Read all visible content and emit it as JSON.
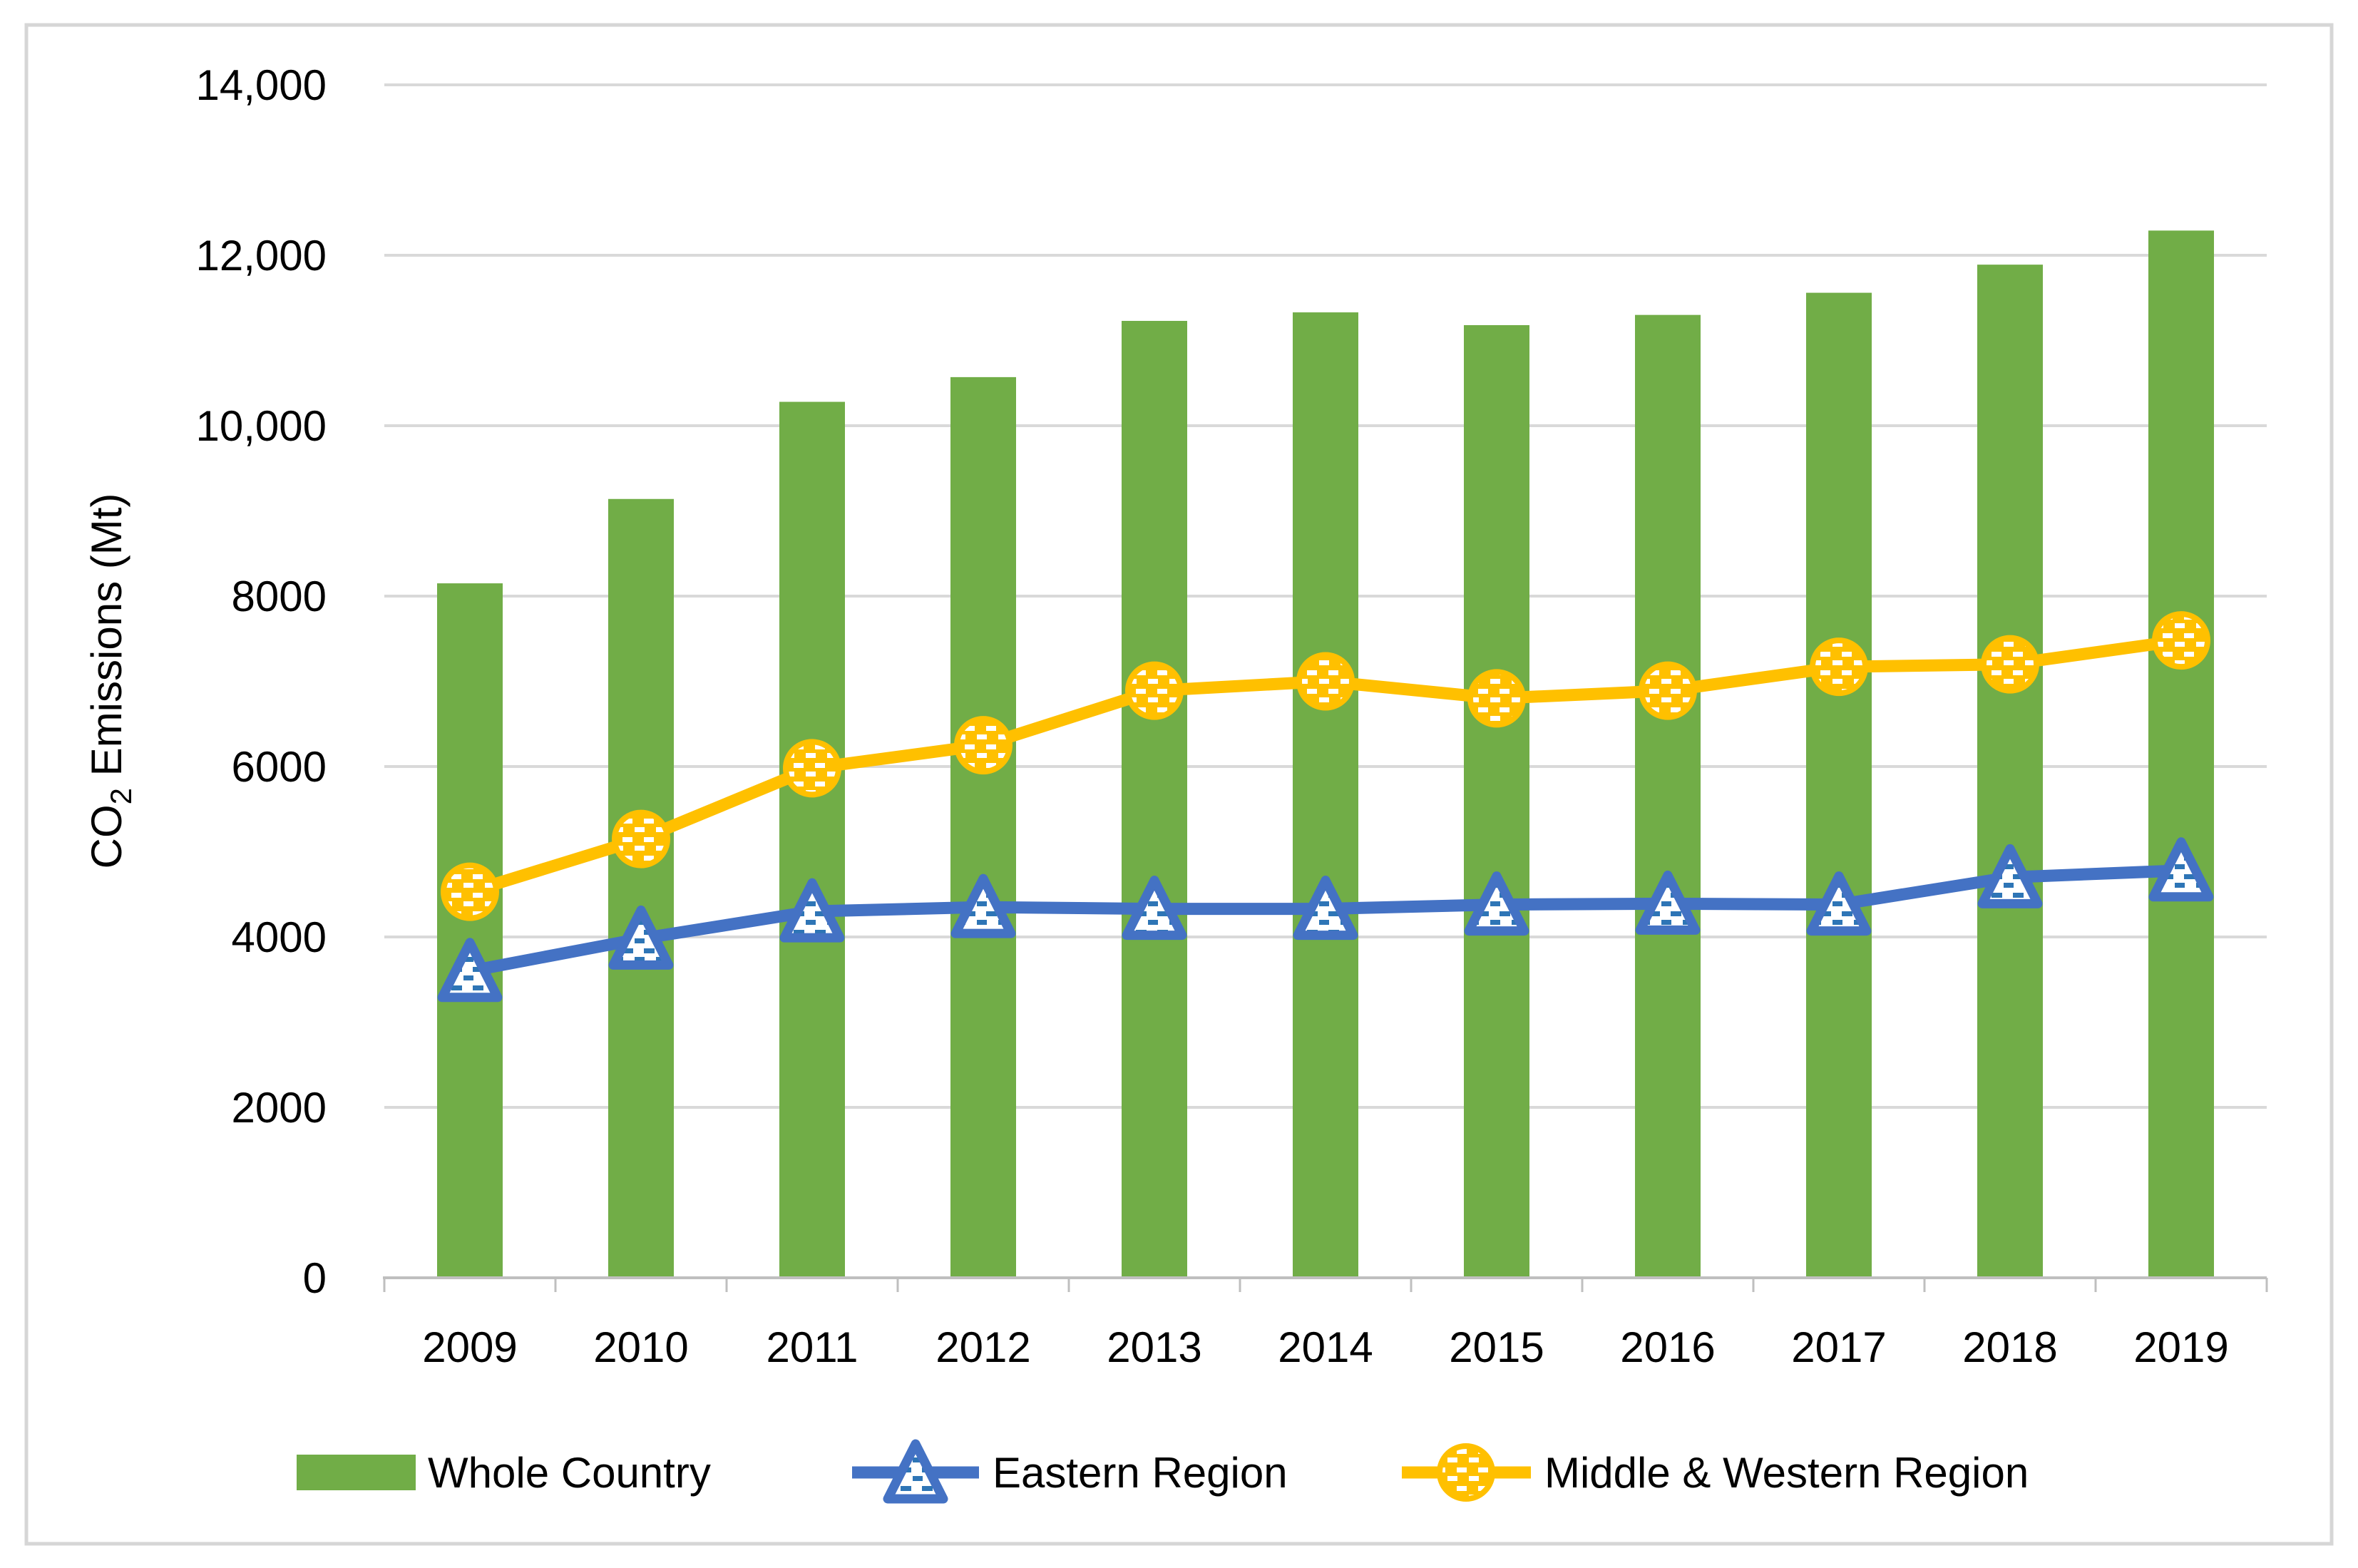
{
  "chart_data": {
    "type": "bar+line",
    "title": "",
    "categories": [
      "2009",
      "2010",
      "2011",
      "2012",
      "2013",
      "2014",
      "2015",
      "2016",
      "2017",
      "2018",
      "2019"
    ],
    "series": [
      {
        "name": "Whole Country",
        "type": "bar",
        "color": "#71AD47",
        "values": [
          8150,
          9140,
          10280,
          10570,
          11230,
          11330,
          11180,
          11300,
          11560,
          11890,
          12290
        ]
      },
      {
        "name": "Eastern Region",
        "type": "line",
        "color": "#4472C4",
        "marker": "triangle",
        "marker_fill": "white-with-blue-dashes",
        "values": [
          3600,
          3980,
          4300,
          4350,
          4330,
          4330,
          4380,
          4390,
          4380,
          4700,
          4780
        ]
      },
      {
        "name": "Middle & Western Region",
        "type": "line",
        "color": "#FFC000",
        "marker": "circle",
        "marker_fill": "gold-with-white-dashes",
        "values": [
          4530,
          5150,
          5980,
          6250,
          6890,
          7000,
          6800,
          6890,
          7170,
          7200,
          7480
        ]
      }
    ],
    "xlabel": "",
    "ylabel_parts": {
      "prefix": "CO",
      "subscript": "2",
      "suffix": " Emissions (Mt)"
    },
    "ylim": [
      0,
      14000
    ],
    "ytick_interval": 2000,
    "ytick_labels": [
      "0",
      "2000",
      "4000",
      "6000",
      "8000",
      "10,000",
      "12,000",
      "14,000"
    ],
    "grid": true,
    "gridline_color": "#D9D9D9",
    "axis_line_color": "#BFBFBF",
    "text_color": "#000000",
    "legend_position": "bottom"
  },
  "legend": {
    "items": [
      {
        "label": "Whole Country",
        "swatch": "green-bar"
      },
      {
        "label": "Eastern Region",
        "swatch": "blue-line-triangle-marker"
      },
      {
        "label": "Middle & Western Region",
        "swatch": "gold-line-circle-marker"
      }
    ]
  }
}
